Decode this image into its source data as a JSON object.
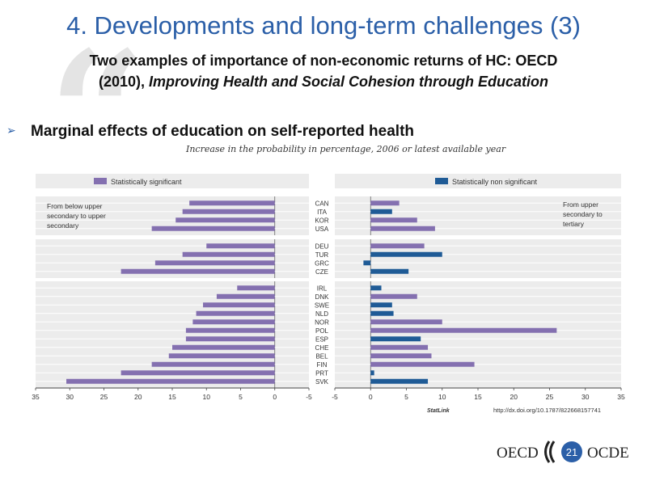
{
  "slide": {
    "title": "4. Developments and long-term challenges (3)",
    "subtitle_line1": "Two examples of importance of non-economic returns of HC: OECD",
    "subtitle_line2_prefix": "(2010), ",
    "subtitle_line2_italic": "Improving Health and Social Cohesion through Education",
    "bullet": "Marginal effects of education on self-reported health",
    "page_number": "21",
    "logo_left": "OECD",
    "logo_right": "OCDE"
  },
  "colors": {
    "significant": "#8470b0",
    "non_significant": "#1f5b96",
    "title": "#2b5fa8",
    "panel_bg": "#ececec"
  },
  "chart_data": {
    "type": "bar",
    "caption": "Increase in the probability in percentage, 2006 or latest available year",
    "legend": {
      "significant": "Statistically significant",
      "non_significant": "Statistically non significant"
    },
    "left_panel": {
      "label": "From below upper secondary to upper secondary",
      "label_lines": [
        "From below upper",
        "secondary to upper",
        "secondary"
      ],
      "axis_ticks": [
        "35",
        "30",
        "25",
        "20",
        "15",
        "10",
        "5",
        "0",
        "-5"
      ],
      "xlim": [
        35,
        -5
      ]
    },
    "right_panel": {
      "label": "From upper secondary to tertiary",
      "label_lines": [
        "From upper",
        "secondary to",
        "tertiary"
      ],
      "axis_ticks": [
        "-5",
        "0",
        "5",
        "10",
        "15",
        "20",
        "25",
        "30",
        "35"
      ],
      "xlim": [
        -5,
        35
      ]
    },
    "groups": [
      {
        "countries": [
          "CAN",
          "ITA",
          "KOR",
          "USA"
        ],
        "left": [
          12.5,
          13.5,
          14.5,
          18
        ],
        "left_sig": [
          true,
          true,
          true,
          true
        ],
        "right": [
          4,
          3,
          6.5,
          9
        ],
        "right_sig": [
          true,
          false,
          true,
          true
        ]
      },
      {
        "countries": [
          "DEU",
          "TUR",
          "GRC",
          "CZE"
        ],
        "left": [
          10,
          13.5,
          17.5,
          22.5
        ],
        "left_sig": [
          true,
          true,
          true,
          true
        ],
        "right": [
          7.5,
          10,
          -1,
          5.3
        ],
        "right_sig": [
          true,
          false,
          false,
          false
        ]
      },
      {
        "countries": [
          "IRL",
          "DNK",
          "SWE",
          "NLD",
          "NOR",
          "POL",
          "ESP",
          "CHE",
          "BEL",
          "FIN",
          "PRT",
          "SVK"
        ],
        "left": [
          5.5,
          8.5,
          10.5,
          11.5,
          12,
          13,
          13,
          15,
          15.5,
          18,
          22.5,
          30.5
        ],
        "left_sig": [
          true,
          true,
          true,
          true,
          true,
          true,
          true,
          true,
          true,
          true,
          true,
          true
        ],
        "right": [
          1.5,
          6.5,
          3,
          3.2,
          10,
          26,
          7,
          8,
          8.5,
          14.5,
          0.5,
          8
        ],
        "right_sig": [
          false,
          true,
          false,
          false,
          true,
          true,
          false,
          true,
          true,
          true,
          false,
          false
        ]
      }
    ],
    "source": "http://dx.doi.org/10.1787/822668157741",
    "statlink_label": "StatLink"
  }
}
